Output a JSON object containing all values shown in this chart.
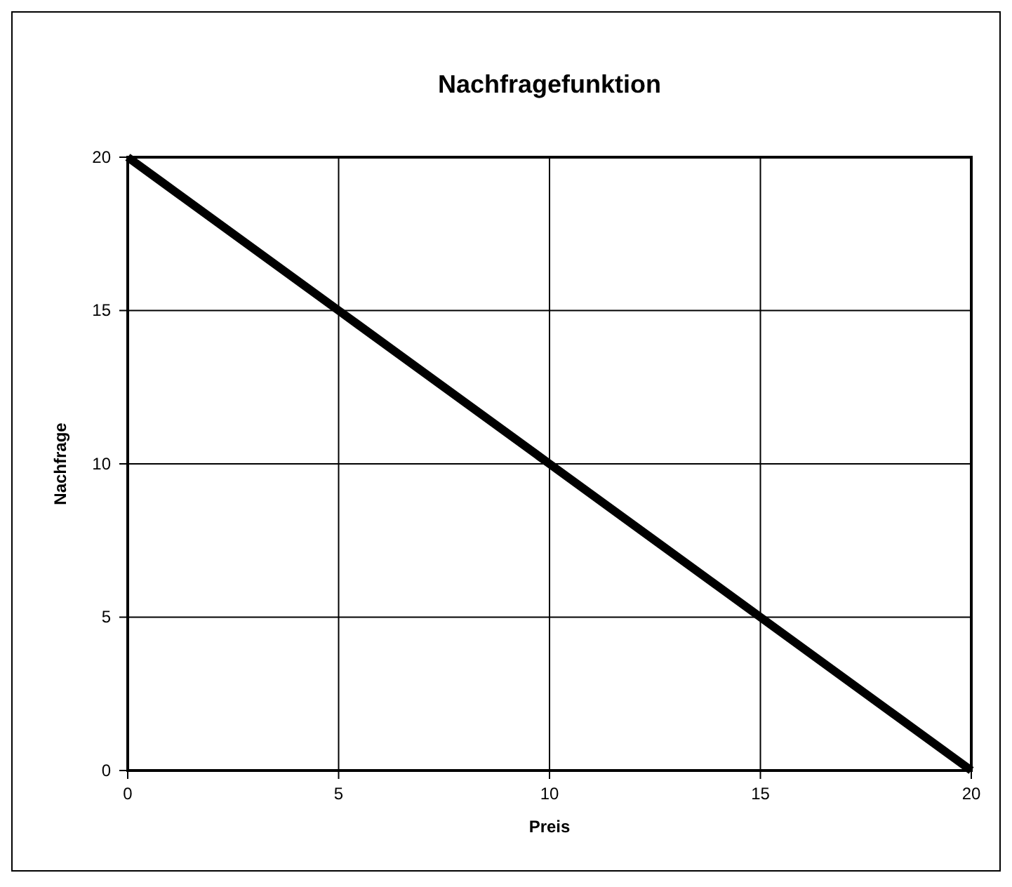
{
  "chart_data": {
    "type": "line",
    "title": "Nachfragefunktion",
    "xlabel": "Preis",
    "ylabel": "Nachfrage",
    "x": [
      0,
      5,
      10,
      15,
      20
    ],
    "series": [
      {
        "color": "#000000",
        "values": [
          20,
          15,
          10,
          5,
          0
        ]
      }
    ],
    "xlim": [
      0,
      20
    ],
    "ylim": [
      0,
      20
    ],
    "xticks": [
      0,
      5,
      10,
      15,
      20
    ],
    "yticks": [
      0,
      5,
      10,
      15,
      20
    ],
    "grid": true,
    "marker": "none",
    "line_style": "solid"
  }
}
